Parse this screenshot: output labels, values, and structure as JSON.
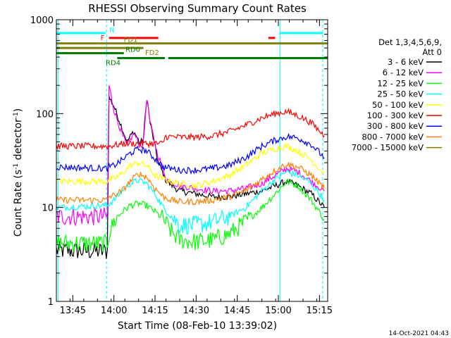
{
  "chart_data": {
    "type": "line",
    "title": "RHESSI Observing Summary Count Rates",
    "xlabel": "Start Time (08-Feb-10 13:39:02)",
    "ylabel": "Count Rate (s",
    "ylabel_sup": "-1",
    "ylabel_tail": " detector",
    "ylabel_end": ")",
    "xlim": [
      13.65,
      15.3
    ],
    "ylim": [
      1,
      1000
    ],
    "yscale": "log",
    "x_ticks": [
      {
        "v": 13.75,
        "label": "13:45"
      },
      {
        "v": 14.0,
        "label": "14:00"
      },
      {
        "v": 14.25,
        "label": "14:15"
      },
      {
        "v": 14.5,
        "label": "14:30"
      },
      {
        "v": 14.75,
        "label": "14:45"
      },
      {
        "v": 15.0,
        "label": "15:00"
      },
      {
        "v": 15.25,
        "label": "15:15"
      }
    ],
    "y_ticks": [
      {
        "v": 1,
        "label": "1"
      },
      {
        "v": 10,
        "label": "10"
      },
      {
        "v": 100,
        "label": "100"
      },
      {
        "v": 1000,
        "label": "1000"
      }
    ],
    "legend_header": [
      "Det 1,3,4,5,6,9,",
      "Att 0"
    ],
    "legend_position": "right",
    "series": [
      {
        "name": "3 - 6 keV",
        "color": "#000000",
        "points": [
          [
            13.65,
            3.5
          ],
          [
            13.96,
            3.4
          ],
          [
            13.97,
            150
          ],
          [
            14.0,
            120
          ],
          [
            14.05,
            70
          ],
          [
            14.08,
            50
          ],
          [
            14.12,
            65
          ],
          [
            14.16,
            48
          ],
          [
            14.18,
            55
          ],
          [
            14.2,
            150
          ],
          [
            14.22,
            80
          ],
          [
            14.27,
            30
          ],
          [
            14.32,
            19
          ],
          [
            14.4,
            15
          ],
          [
            14.5,
            14
          ],
          [
            14.6,
            13
          ],
          [
            14.7,
            13
          ],
          [
            14.8,
            14
          ],
          [
            14.9,
            15
          ],
          [
            14.98,
            17
          ],
          [
            15.05,
            19
          ],
          [
            15.12,
            17
          ],
          [
            15.2,
            14
          ],
          [
            15.28,
            10
          ]
        ]
      },
      {
        "name": "6 - 12 keV",
        "color": "#ff00ff",
        "points": [
          [
            13.65,
            8
          ],
          [
            13.96,
            8
          ],
          [
            13.97,
            200
          ],
          [
            14.0,
            110
          ],
          [
            14.05,
            60
          ],
          [
            14.08,
            45
          ],
          [
            14.12,
            62
          ],
          [
            14.16,
            45
          ],
          [
            14.18,
            50
          ],
          [
            14.2,
            150
          ],
          [
            14.22,
            80
          ],
          [
            14.26,
            40
          ],
          [
            14.32,
            20
          ],
          [
            14.4,
            17
          ],
          [
            14.5,
            16
          ],
          [
            14.6,
            15
          ],
          [
            14.7,
            15
          ],
          [
            14.8,
            16
          ],
          [
            14.9,
            18
          ],
          [
            14.98,
            22
          ],
          [
            15.05,
            26
          ],
          [
            15.12,
            24
          ],
          [
            15.2,
            19
          ],
          [
            15.28,
            15
          ]
        ]
      },
      {
        "name": "12 - 25 keV",
        "color": "#00ff00",
        "points": [
          [
            13.65,
            4.2
          ],
          [
            13.96,
            4.1
          ],
          [
            13.97,
            5.3
          ],
          [
            14.0,
            7
          ],
          [
            14.05,
            9
          ],
          [
            14.1,
            10.5
          ],
          [
            14.15,
            11
          ],
          [
            14.2,
            10.5
          ],
          [
            14.25,
            9
          ],
          [
            14.3,
            7.5
          ],
          [
            14.35,
            5.5
          ],
          [
            14.4,
            4.5
          ],
          [
            14.5,
            4.3
          ],
          [
            14.6,
            4.5
          ],
          [
            14.7,
            5.2
          ],
          [
            14.8,
            7
          ],
          [
            14.9,
            10
          ],
          [
            14.98,
            14
          ],
          [
            15.05,
            19
          ],
          [
            15.12,
            17
          ],
          [
            15.2,
            12
          ],
          [
            15.28,
            7.5
          ]
        ]
      },
      {
        "name": "25 - 50 keV",
        "color": "#00ffff",
        "points": [
          [
            13.65,
            10
          ],
          [
            13.96,
            10.5
          ],
          [
            13.97,
            11
          ],
          [
            14.0,
            12
          ],
          [
            14.05,
            15
          ],
          [
            14.1,
            18
          ],
          [
            14.15,
            19.5
          ],
          [
            14.2,
            18
          ],
          [
            14.25,
            14
          ],
          [
            14.3,
            10
          ],
          [
            14.35,
            8
          ],
          [
            14.4,
            6.5
          ],
          [
            14.5,
            6.5
          ],
          [
            14.6,
            7
          ],
          [
            14.7,
            8
          ],
          [
            14.8,
            10
          ],
          [
            14.9,
            15
          ],
          [
            14.98,
            20
          ],
          [
            15.05,
            24
          ],
          [
            15.12,
            22
          ],
          [
            15.2,
            18
          ],
          [
            15.28,
            12
          ]
        ]
      },
      {
        "name": "50 - 100 keV",
        "color": "#ffff00",
        "points": [
          [
            13.65,
            19
          ],
          [
            13.96,
            19
          ],
          [
            13.97,
            20
          ],
          [
            14.0,
            20
          ],
          [
            14.05,
            23
          ],
          [
            14.1,
            28
          ],
          [
            14.15,
            30
          ],
          [
            14.2,
            28
          ],
          [
            14.25,
            22
          ],
          [
            14.3,
            20
          ],
          [
            14.4,
            18
          ],
          [
            14.5,
            17
          ],
          [
            14.6,
            19
          ],
          [
            14.7,
            22
          ],
          [
            14.8,
            28
          ],
          [
            14.9,
            38
          ],
          [
            14.98,
            42
          ],
          [
            15.05,
            45
          ],
          [
            15.12,
            40
          ],
          [
            15.2,
            32
          ],
          [
            15.28,
            23
          ]
        ]
      },
      {
        "name": "100 - 300 keV",
        "color": "#ff0000",
        "points": [
          [
            13.65,
            45
          ],
          [
            13.96,
            45
          ],
          [
            13.97,
            45
          ],
          [
            14.0,
            46
          ],
          [
            14.04,
            47
          ],
          [
            14.05,
            48
          ],
          [
            14.06,
            48
          ],
          [
            14.25,
            48
          ],
          [
            14.3,
            48
          ],
          [
            14.31,
            57
          ],
          [
            14.4,
            56
          ],
          [
            14.5,
            56
          ],
          [
            14.6,
            58
          ],
          [
            14.7,
            64
          ],
          [
            14.8,
            75
          ],
          [
            14.9,
            90
          ],
          [
            14.98,
            100
          ],
          [
            15.05,
            105
          ],
          [
            15.12,
            95
          ],
          [
            15.2,
            80
          ],
          [
            15.28,
            58
          ]
        ]
      },
      {
        "name": "300 - 800 keV",
        "color": "#0000ff",
        "points": [
          [
            13.65,
            27
          ],
          [
            13.96,
            26
          ],
          [
            13.97,
            27
          ],
          [
            14.0,
            28
          ],
          [
            14.05,
            32
          ],
          [
            14.1,
            38
          ],
          [
            14.15,
            42
          ],
          [
            14.2,
            40
          ],
          [
            14.25,
            33
          ],
          [
            14.3,
            27
          ],
          [
            14.35,
            26
          ],
          [
            14.4,
            25
          ],
          [
            14.5,
            25
          ],
          [
            14.6,
            26
          ],
          [
            14.7,
            28
          ],
          [
            14.8,
            34
          ],
          [
            14.9,
            45
          ],
          [
            14.98,
            52
          ],
          [
            15.05,
            57
          ],
          [
            15.12,
            55
          ],
          [
            15.2,
            47
          ],
          [
            15.28,
            34
          ]
        ]
      },
      {
        "name": "800 - 7000 keV",
        "color": "#ff8000",
        "points": [
          [
            13.65,
            12
          ],
          [
            13.96,
            12
          ],
          [
            13.97,
            13
          ],
          [
            14.0,
            13.5
          ],
          [
            14.05,
            15
          ],
          [
            14.1,
            19
          ],
          [
            14.15,
            23
          ],
          [
            14.2,
            21
          ],
          [
            14.25,
            16
          ],
          [
            14.3,
            13
          ],
          [
            14.35,
            12
          ],
          [
            14.4,
            11.5
          ],
          [
            14.5,
            11.5
          ],
          [
            14.6,
            12
          ],
          [
            14.7,
            13
          ],
          [
            14.8,
            15
          ],
          [
            14.9,
            20
          ],
          [
            14.98,
            25
          ],
          [
            15.05,
            29
          ],
          [
            15.12,
            27
          ],
          [
            15.2,
            22
          ],
          [
            15.28,
            16
          ]
        ]
      },
      {
        "name": "7000 - 15000 keV",
        "color": "#808000",
        "points": []
      }
    ],
    "attenuator_bars": [
      {
        "label": "N",
        "color": "#00ffff",
        "segments": [
          [
            13.65,
            13.95
          ],
          [
            15.01,
            15.27
          ]
        ],
        "value": 720
      },
      {
        "label": "F",
        "color": "#ff0000",
        "segments": [
          [
            13.97,
            14.27
          ],
          [
            14.94,
            14.98
          ]
        ],
        "value": 640
      },
      {
        "label": "FD1",
        "color": "#808000",
        "segments": [
          [
            13.65,
            15.3
          ]
        ],
        "value": 560
      },
      {
        "label": "FD2",
        "color": "#808000",
        "segments": [
          [
            13.65,
            14.18
          ]
        ],
        "value": 500
      },
      {
        "label": "RD0",
        "color": "#008000",
        "segments": [
          [
            13.65,
            14.06
          ]
        ],
        "value": 440
      },
      {
        "label": "RD4",
        "color": "#008000",
        "segments": [
          [
            14.02,
            14.31
          ],
          [
            14.33,
            15.3
          ]
        ],
        "value": 390
      }
    ],
    "vlines": [
      {
        "x": 13.66,
        "color": "#00ffff",
        "dashed": false
      },
      {
        "x": 13.955,
        "color": "#00ffff",
        "dashed": true
      },
      {
        "x": 15.01,
        "color": "#00ffff",
        "dashed": false
      },
      {
        "x": 15.27,
        "color": "#00ffff",
        "dashed": true
      }
    ],
    "footer": "14-Oct-2021 04:43"
  }
}
